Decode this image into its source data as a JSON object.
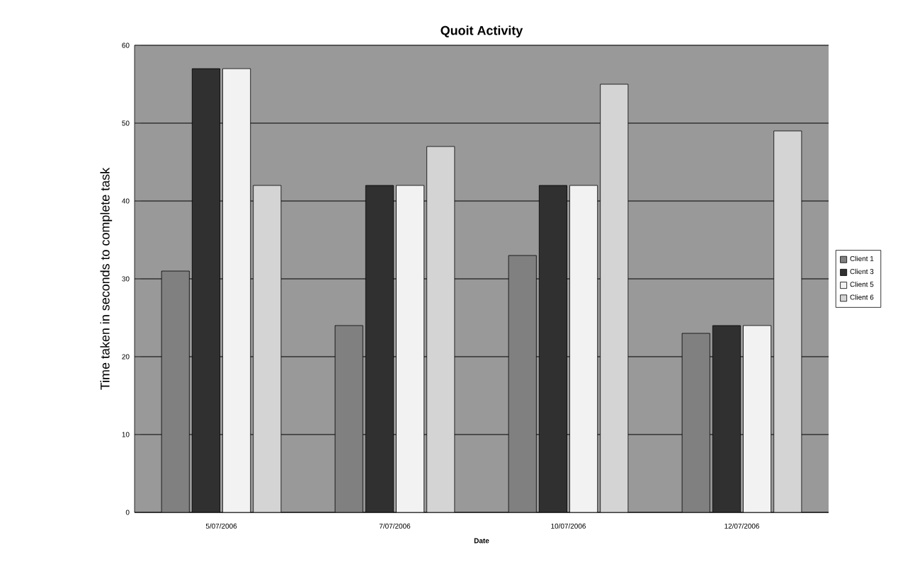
{
  "chart_data": {
    "type": "bar",
    "title": "Quoit Activity",
    "xlabel": "Date",
    "ylabel": "Time taken in seconds to complete task",
    "categories": [
      "5/07/2006",
      "7/07/2006",
      "10/07/2006",
      "12/07/2006"
    ],
    "series": [
      {
        "name": "Client 1",
        "color": "#808080",
        "values": [
          31,
          24,
          33,
          23
        ]
      },
      {
        "name": "Client 3",
        "color": "#303030",
        "values": [
          57,
          42,
          42,
          24
        ]
      },
      {
        "name": "Client 5",
        "color": "#f2f2f2",
        "values": [
          57,
          42,
          42,
          24
        ]
      },
      {
        "name": "Client 6",
        "color": "#d4d4d4",
        "values": [
          42,
          47,
          55,
          49
        ]
      }
    ],
    "ylim": [
      0,
      60
    ],
    "yticks": [
      0,
      10,
      20,
      30,
      40,
      50,
      60
    ],
    "grid": "y",
    "legend": "right"
  }
}
